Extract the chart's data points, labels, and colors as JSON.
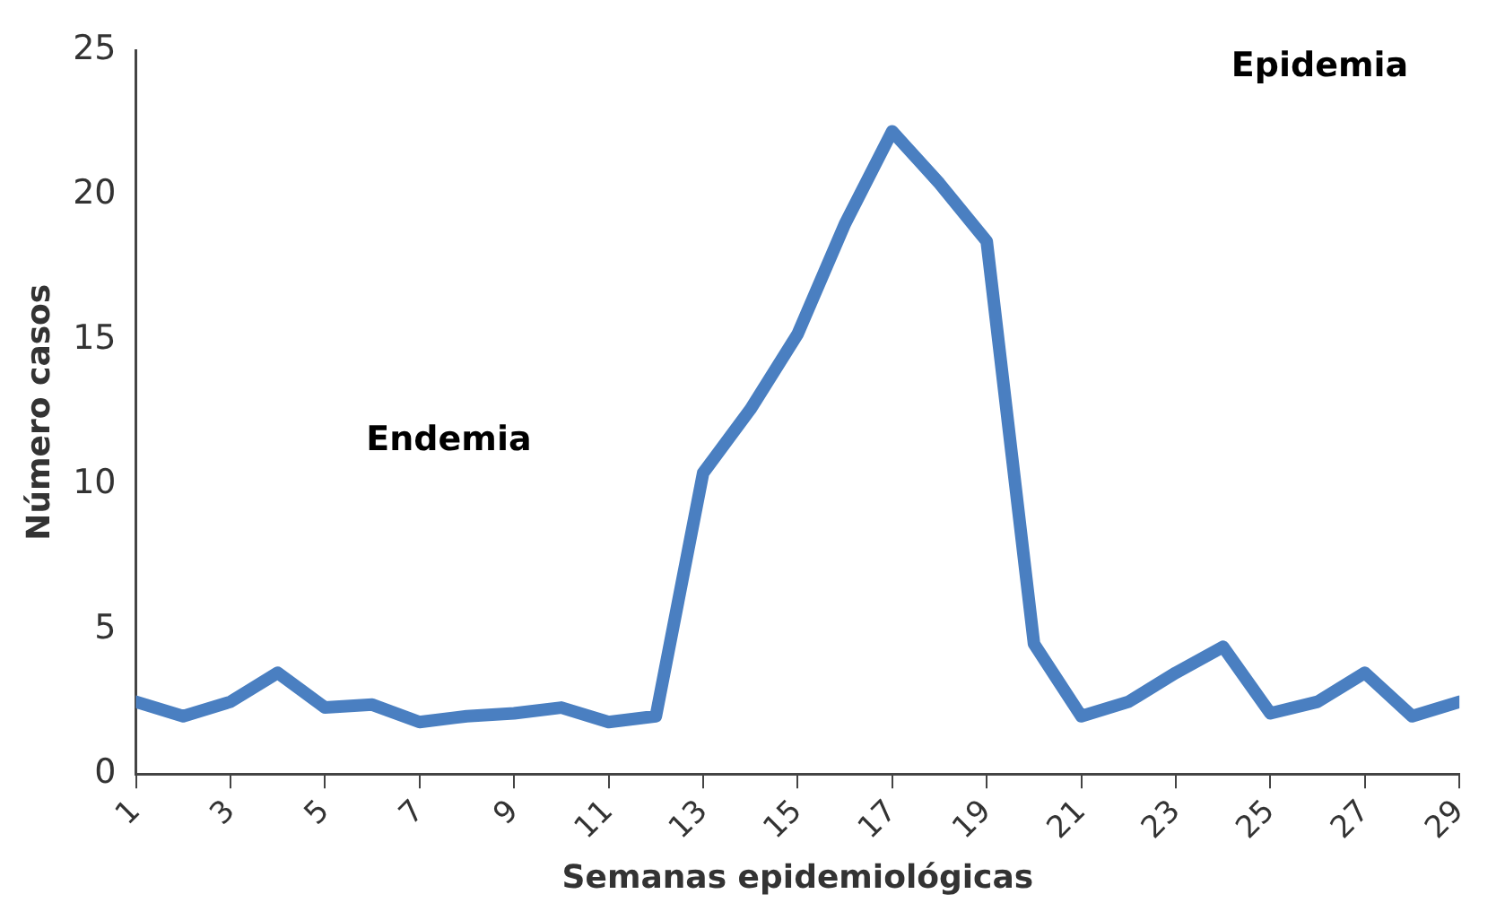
{
  "chart_data": {
    "type": "line",
    "xlabel": "Semanas epidemiológicas",
    "ylabel": "Número casos",
    "x": [
      1,
      2,
      3,
      4,
      5,
      6,
      7,
      8,
      9,
      10,
      11,
      12,
      13,
      14,
      15,
      16,
      17,
      18,
      19,
      20,
      21,
      22,
      23,
      24,
      25,
      26,
      27,
      28,
      29
    ],
    "xlim": [
      1,
      29
    ],
    "xticks": [
      1,
      3,
      5,
      7,
      9,
      11,
      13,
      15,
      17,
      19,
      21,
      23,
      25,
      27,
      29
    ],
    "series": [
      {
        "color": "#4a7fc1",
        "values": [
          2.5,
          2.0,
          2.5,
          3.5,
          2.3,
          2.4,
          1.8,
          2.0,
          2.1,
          2.3,
          1.8,
          2.0,
          10.4,
          12.6,
          15.2,
          19.0,
          22.2,
          20.4,
          18.4,
          4.5,
          2.0,
          2.5,
          3.5,
          4.4,
          2.1,
          2.5,
          3.5,
          2.0,
          2.5
        ]
      }
    ],
    "ylim": [
      0,
      25
    ],
    "yticks": [
      0,
      5,
      10,
      15,
      20,
      25
    ],
    "grid": false,
    "legend": false,
    "marker": "none",
    "line_style": "solid",
    "annotations": [
      "Endemia",
      "Epidemia"
    ]
  }
}
